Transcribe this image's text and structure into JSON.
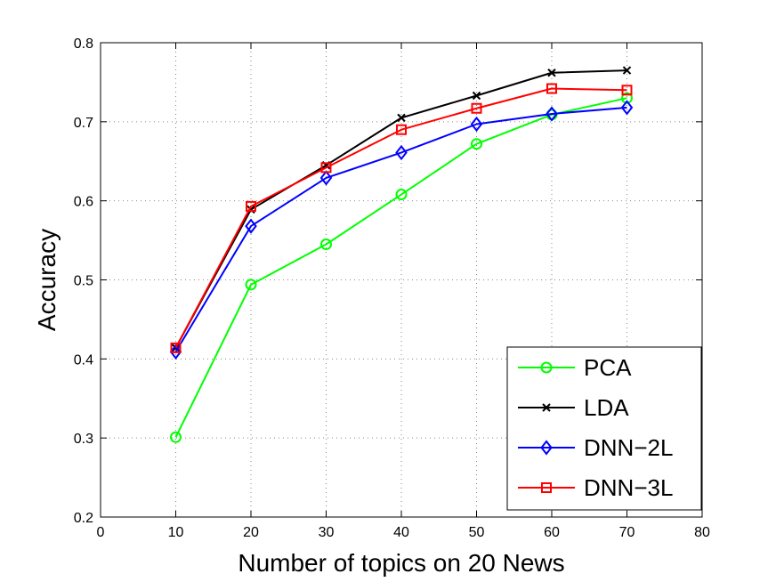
{
  "chart_data": {
    "type": "line",
    "title": "",
    "xlabel": "Number of topics on 20 News",
    "ylabel": "Accuracy",
    "xlim": [
      0,
      80
    ],
    "ylim": [
      0.2,
      0.8
    ],
    "xticks": [
      0,
      10,
      20,
      30,
      40,
      50,
      60,
      70,
      80
    ],
    "yticks": [
      0.2,
      0.3,
      0.4,
      0.5,
      0.6,
      0.7,
      0.8
    ],
    "xtick_labels": [
      "0",
      "10",
      "20",
      "30",
      "40",
      "50",
      "60",
      "70",
      "80"
    ],
    "ytick_labels": [
      "0.2",
      "0.3",
      "0.4",
      "0.5",
      "0.6",
      "0.7",
      "0.8"
    ],
    "grid": true,
    "legend_position": "bottom-right",
    "x": [
      10,
      20,
      30,
      40,
      50,
      60,
      70
    ],
    "series": [
      {
        "name": "PCA",
        "color": "#00ff00",
        "marker": "circle",
        "values": [
          0.301,
          0.494,
          0.545,
          0.608,
          0.672,
          0.709,
          0.73
        ]
      },
      {
        "name": "LDA",
        "color": "#000000",
        "marker": "x",
        "values": [
          0.414,
          0.589,
          0.645,
          0.705,
          0.733,
          0.762,
          0.765
        ]
      },
      {
        "name": "DNN−2L",
        "color": "#0000ff",
        "marker": "diamond",
        "values": [
          0.409,
          0.568,
          0.629,
          0.661,
          0.697,
          0.71,
          0.718
        ]
      },
      {
        "name": "DNN−3L",
        "color": "#ff0000",
        "marker": "square",
        "values": [
          0.414,
          0.593,
          0.642,
          0.69,
          0.717,
          0.742,
          0.74
        ]
      }
    ]
  }
}
